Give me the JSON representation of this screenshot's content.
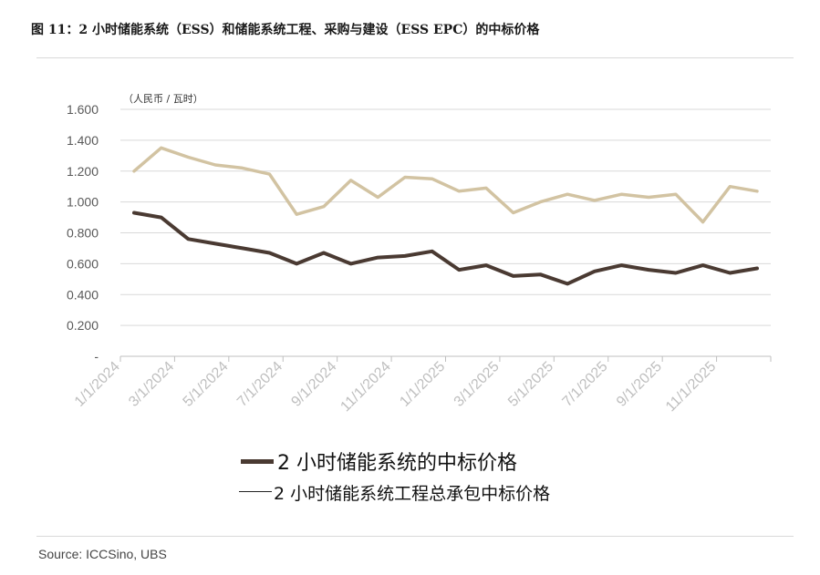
{
  "figure_title": "图 11：2 小时储能系统（ESS）和储能系统工程、采购与建设（ESS EPC）的中标价格",
  "source": "Source: ICCSino, UBS",
  "chart_data": {
    "type": "line",
    "unit_label": "（人民币 / 瓦时）",
    "ylim": [
      0,
      1.6
    ],
    "yticks": [
      "-",
      "0.200",
      "0.400",
      "0.600",
      "0.800",
      "1.000",
      "1.200",
      "1.400",
      "1.600"
    ],
    "ytick_values": [
      0,
      0.2,
      0.4,
      0.6,
      0.8,
      1.0,
      1.2,
      1.4,
      1.6
    ],
    "x_tick_labels": [
      "1/1/2024",
      "3/1/2024",
      "5/1/2024",
      "7/1/2024",
      "9/1/2024",
      "11/1/2024",
      "1/1/2025",
      "3/1/2025",
      "5/1/2025",
      "7/1/2025",
      "9/1/2025",
      "11/1/2025"
    ],
    "x_tick_index": [
      0,
      2,
      4,
      6,
      8,
      10,
      12,
      14,
      16,
      18,
      20,
      22
    ],
    "x_count": 24,
    "grid": true,
    "legend_position": "bottom",
    "series": [
      {
        "name": "2 小时储能系统的中标价格",
        "color": "#4a3a32",
        "values": [
          0.93,
          0.9,
          0.76,
          0.73,
          0.7,
          0.67,
          0.6,
          0.67,
          0.6,
          0.64,
          0.65,
          0.68,
          0.56,
          0.59,
          0.52,
          0.53,
          0.47,
          0.55,
          0.59,
          0.56,
          0.54,
          0.59,
          0.54,
          0.57
        ]
      },
      {
        "name": "2 小时储能系统工程总承包中标价格",
        "color": "#d2c3a2",
        "values": [
          1.2,
          1.35,
          1.29,
          1.24,
          1.22,
          1.18,
          0.92,
          0.97,
          1.14,
          1.03,
          1.16,
          1.15,
          1.07,
          1.09,
          0.93,
          1.0,
          1.05,
          1.01,
          1.05,
          1.03,
          1.05,
          0.87,
          1.1,
          1.07
        ]
      }
    ]
  }
}
